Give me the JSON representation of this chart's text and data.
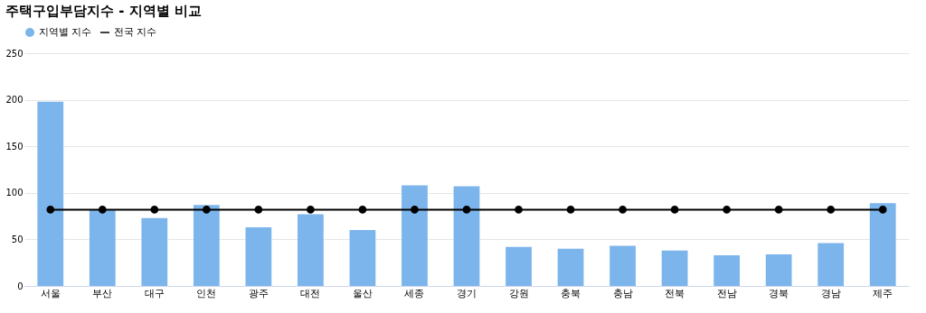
{
  "chart_data": {
    "type": "bar",
    "title": "주택구입부담지수 - 지역별 비교",
    "categories": [
      "서울",
      "부산",
      "대구",
      "인천",
      "광주",
      "대전",
      "울산",
      "세종",
      "경기",
      "강원",
      "충북",
      "충남",
      "전북",
      "전남",
      "경북",
      "경남",
      "제주"
    ],
    "series": [
      {
        "name": "지역별 지수",
        "color": "#7cb5ec",
        "values": [
          198,
          82,
          73,
          87,
          63,
          77,
          60,
          108,
          107,
          42,
          40,
          43,
          38,
          33,
          34,
          46,
          89
        ]
      },
      {
        "name": "전국 지수",
        "color": "#000000",
        "type": "line",
        "marker": "circle",
        "values": [
          82,
          82,
          82,
          82,
          82,
          82,
          82,
          82,
          82,
          82,
          82,
          82,
          82,
          82,
          82,
          82,
          82
        ]
      }
    ],
    "ylim": [
      0,
      250
    ],
    "yticks": [
      0,
      50,
      100,
      150,
      200,
      250
    ],
    "grid": "y",
    "legend": "top"
  }
}
